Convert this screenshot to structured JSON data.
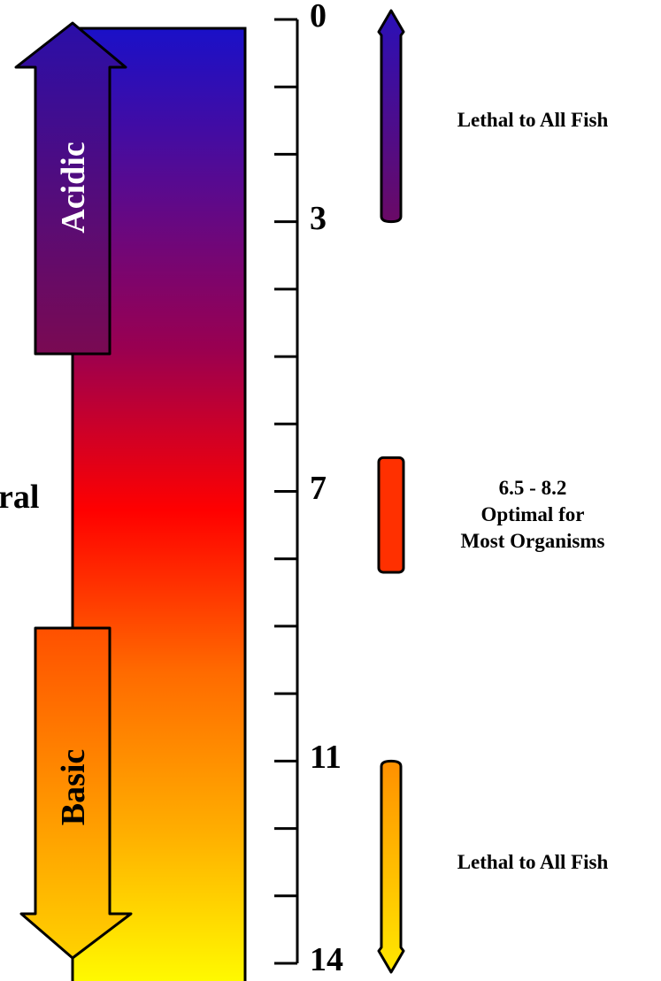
{
  "scale": {
    "min": 0,
    "max": 14,
    "minor_tick_step": 1,
    "labeled_ticks": [
      {
        "value": 0,
        "label": "0"
      },
      {
        "value": 3,
        "label": "3"
      },
      {
        "value": 7,
        "label": "7"
      },
      {
        "value": 11,
        "label": "11"
      },
      {
        "value": 14,
        "label": "14"
      }
    ]
  },
  "gradient": {
    "stops": [
      "#1a10c8",
      "#5a0a8e",
      "#9a0050",
      "#ff0000",
      "#ff6a00",
      "#ffae00",
      "#ffff00"
    ]
  },
  "arrows": {
    "acidic": {
      "label": "Acidic",
      "direction": "up",
      "color_top": "#2a0ea8",
      "color_bottom": "#7a0a52"
    },
    "basic": {
      "label": "Basic",
      "direction": "down",
      "color_top": "#ff5000",
      "color_bottom": "#ffd200"
    }
  },
  "neutral_label": "ral",
  "ranges": [
    {
      "from": 0,
      "to": 3,
      "text_lines": [
        "Lethal to All Fish"
      ],
      "shape": "arrow-up",
      "color_top": "#2a10b8",
      "color_bottom": "#6a0a66"
    },
    {
      "from": 6.5,
      "to": 8.2,
      "text_lines": [
        "6.5 - 8.2",
        "Optimal for",
        "Most Organisms"
      ],
      "shape": "bar",
      "color_top": "#ff3000",
      "color_bottom": "#ff3000"
    },
    {
      "from": 11,
      "to": 14,
      "text_lines": [
        "Lethal to All Fish"
      ],
      "shape": "arrow-down",
      "color_top": "#ff9000",
      "color_bottom": "#ffe800"
    }
  ]
}
